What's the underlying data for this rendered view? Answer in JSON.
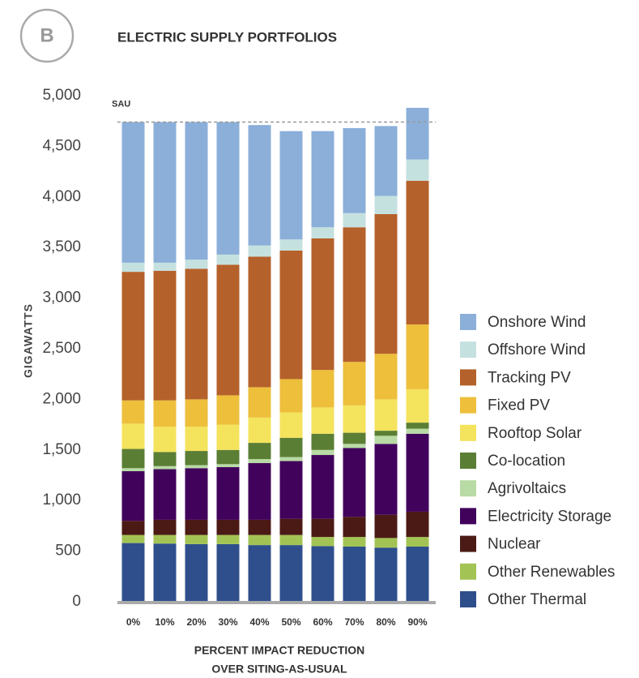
{
  "panel_label": "B",
  "chart_data": {
    "type": "stacked_bar",
    "title": "ELECTRIC SUPPLY PORTFOLIOS",
    "y_label": "GIGAWATTS",
    "x_label": [
      "PERCENT IMPACT REDUCTION",
      "OVER SITING-AS-USUAL"
    ],
    "categories": [
      "0%",
      "10%",
      "20%",
      "30%",
      "40%",
      "50%",
      "60%",
      "70%",
      "80%",
      "90%"
    ],
    "ylim": [
      0,
      5000
    ],
    "yticks": [
      0,
      500,
      {
        "value": 1000,
        "label": "1,000"
      },
      {
        "value": 1500,
        "label": "1,500"
      },
      {
        "value": 2000,
        "label": "2,000"
      },
      {
        "value": 2500,
        "label": "2,500"
      },
      {
        "value": 3000,
        "label": "3,000"
      },
      {
        "value": 3500,
        "label": "3,500"
      },
      {
        "value": 4000,
        "label": "4,000"
      },
      {
        "value": 4500,
        "label": "4,500"
      },
      {
        "value": 5000,
        "label": "5,000"
      }
    ],
    "reference_line": {
      "label": "SAU",
      "value": 4740
    },
    "series": [
      {
        "name": "Other Thermal",
        "color": "#2f4f8c",
        "values": [
          580,
          575,
          570,
          570,
          560,
          560,
          550,
          545,
          535,
          545
        ]
      },
      {
        "name": "Other Renewables",
        "color": "#a3c454",
        "values": [
          80,
          85,
          90,
          90,
          100,
          100,
          90,
          95,
          95,
          95
        ]
      },
      {
        "name": "Nuclear",
        "color": "#4b1a15",
        "values": [
          140,
          150,
          150,
          150,
          150,
          160,
          180,
          200,
          230,
          250
        ]
      },
      {
        "name": "Electricity Storage",
        "color": "#41025c",
        "values": [
          490,
          500,
          510,
          520,
          560,
          570,
          630,
          680,
          700,
          770
        ]
      },
      {
        "name": "Agrivoltaics",
        "color": "#b8daa4",
        "values": [
          30,
          30,
          30,
          30,
          40,
          40,
          50,
          40,
          80,
          50
        ]
      },
      {
        "name": "Co-location",
        "color": "#5b7e35",
        "values": [
          190,
          140,
          140,
          140,
          160,
          190,
          160,
          110,
          50,
          60
        ]
      },
      {
        "name": "Rooftop Solar",
        "color": "#f4e35c",
        "values": [
          250,
          250,
          240,
          250,
          250,
          250,
          260,
          270,
          310,
          330
        ]
      },
      {
        "name": "Fixed PV",
        "color": "#edbf3b",
        "values": [
          230,
          260,
          270,
          290,
          300,
          330,
          370,
          430,
          450,
          640
        ]
      },
      {
        "name": "Tracking PV",
        "color": "#b5612b",
        "values": [
          1270,
          1280,
          1290,
          1290,
          1290,
          1270,
          1300,
          1330,
          1380,
          1420
        ]
      },
      {
        "name": "Offshore Wind",
        "color": "#c5e1df",
        "values": [
          90,
          80,
          90,
          100,
          110,
          110,
          110,
          140,
          180,
          210
        ]
      },
      {
        "name": "Onshore Wind",
        "color": "#8bafd9",
        "values": [
          1390,
          1390,
          1360,
          1310,
          1190,
          1070,
          950,
          840,
          690,
          510
        ]
      }
    ]
  }
}
